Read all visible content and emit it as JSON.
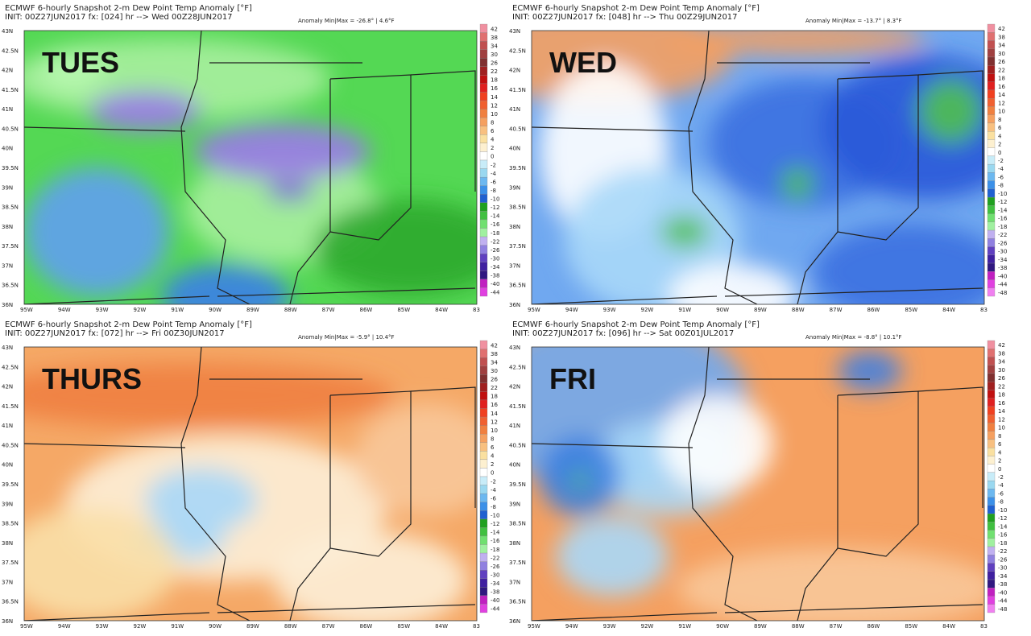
{
  "panels": [
    {
      "title": "ECMWF 6-hourly Snapshot 2-m Dew Point Temp Anomaly [°F]",
      "init": "INIT: 00Z27JUN2017 fx: [024] hr --> Wed 00Z28JUN2017",
      "anomaly": "Anomaly Min|Max = -26.8° | 4.6°F",
      "day": "TUES",
      "colorbar": [
        "42",
        "38",
        "34",
        "30",
        "26",
        "22",
        "18",
        "16",
        "14",
        "12",
        "10",
        "8",
        "6",
        "4",
        "2",
        "0",
        "-2",
        "-4",
        "-6",
        "-8",
        "-10",
        "-12",
        "-14",
        "-16",
        "-18",
        "-22",
        "-26",
        "-30",
        "-34",
        "-38",
        "-40",
        "-44"
      ]
    },
    {
      "title": "ECMWF 6-hourly Snapshot 2-m Dew Point Temp Anomaly [°F]",
      "init": "INIT: 00Z27JUN2017 fx: [048] hr --> Thu 00Z29JUN2017",
      "anomaly": "Anomaly Min|Max = -13.7° | 8.3°F",
      "day": "WED",
      "colorbar": [
        "42",
        "38",
        "34",
        "30",
        "26",
        "22",
        "18",
        "16",
        "14",
        "12",
        "10",
        "8",
        "6",
        "4",
        "2",
        "0",
        "-2",
        "-4",
        "-6",
        "-8",
        "-10",
        "-12",
        "-14",
        "-16",
        "-18",
        "-22",
        "-26",
        "-30",
        "-34",
        "-38",
        "-40",
        "-44",
        "-48"
      ]
    },
    {
      "title": "ECMWF 6-hourly Snapshot 2-m Dew Point Temp Anomaly [°F]",
      "init": "INIT: 00Z27JUN2017 fx: [072] hr --> Fri 00Z30JUN2017",
      "anomaly": "Anomaly Min|Max = -5.9° | 10.4°F",
      "day": "THURS",
      "colorbar": [
        "42",
        "38",
        "34",
        "30",
        "26",
        "22",
        "18",
        "16",
        "14",
        "12",
        "10",
        "8",
        "6",
        "4",
        "2",
        "0",
        "-2",
        "-4",
        "-6",
        "-8",
        "-10",
        "-12",
        "-14",
        "-16",
        "-18",
        "-22",
        "-26",
        "-30",
        "-34",
        "-38",
        "-40",
        "-44"
      ]
    },
    {
      "title": "ECMWF 6-hourly Snapshot 2-m Dew Point Temp Anomaly [°F]",
      "init": "INIT: 00Z27JUN2017 fx: [096] hr --> Sat 00Z01JUL2017",
      "anomaly": "Anomaly Min|Max = -8.8° | 10.1°F",
      "day": "FRI",
      "colorbar": [
        "42",
        "38",
        "34",
        "30",
        "26",
        "22",
        "18",
        "16",
        "14",
        "12",
        "10",
        "8",
        "6",
        "4",
        "2",
        "0",
        "-2",
        "-4",
        "-6",
        "-8",
        "-10",
        "-12",
        "-14",
        "-16",
        "-18",
        "-22",
        "-26",
        "-30",
        "-34",
        "-38",
        "-40",
        "-44",
        "-48"
      ]
    }
  ],
  "lat_labels": [
    "43N",
    "42.5N",
    "42N",
    "41.5N",
    "41N",
    "40.5N",
    "40N",
    "39.5N",
    "39N",
    "38.5N",
    "38N",
    "37.5N",
    "37N",
    "36.5N",
    "36N"
  ],
  "lon_labels": [
    "95W",
    "94W",
    "93W",
    "92W",
    "91W",
    "90W",
    "89W",
    "88W",
    "87W",
    "86W",
    "85W",
    "84W",
    "83"
  ]
}
